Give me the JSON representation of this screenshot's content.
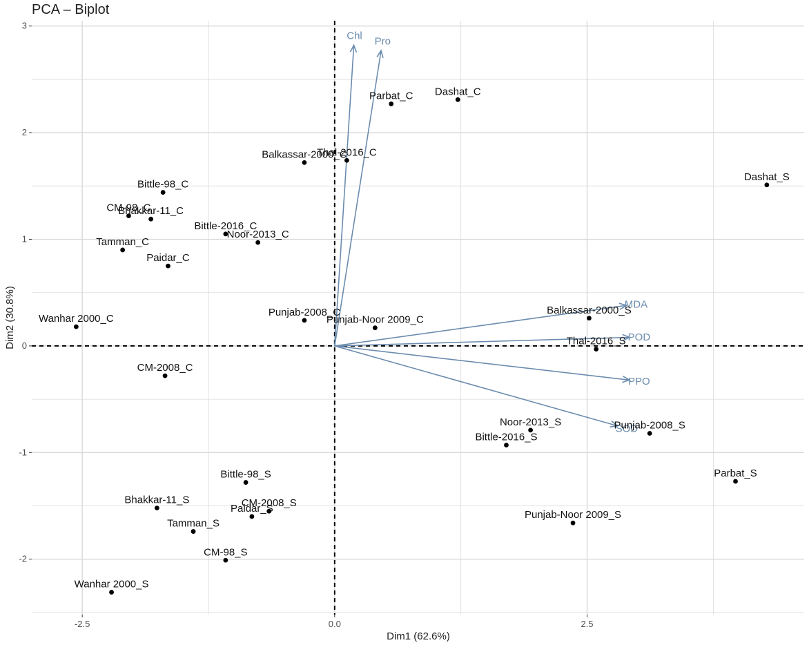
{
  "chart_data": {
    "type": "scatter",
    "title": "PCA – Biplot",
    "xlabel": "Dim1 (62.6%)",
    "ylabel": "Dim2 (30.8%)",
    "xlim": [
      -3.0,
      4.65
    ],
    "ylim": [
      -2.52,
      3.05
    ],
    "x_ticks": [
      -2.5,
      0.0,
      2.5
    ],
    "x_tick_labels": [
      "-2.5",
      "0.0",
      "2.5"
    ],
    "y_ticks": [
      -2,
      -1,
      0,
      1,
      2,
      3
    ],
    "y_tick_labels": [
      "-2",
      "-1",
      "0",
      "1",
      "2",
      "3"
    ],
    "grid": true,
    "arrow_color": "#6b8cae",
    "point_color": "#000000",
    "grid_color": "#d9d9d9",
    "points": [
      {
        "label": "Parbat_C",
        "x": 0.56,
        "y": 2.27
      },
      {
        "label": "Dashat_C",
        "x": 1.22,
        "y": 2.31
      },
      {
        "label": "Balkassar-2000_C",
        "x": -0.3,
        "y": 1.72
      },
      {
        "label": "Thal-2016_C",
        "x": 0.12,
        "y": 1.74
      },
      {
        "label": "Dashat_S",
        "x": 4.28,
        "y": 1.51
      },
      {
        "label": "Bittle-98_C",
        "x": -1.7,
        "y": 1.44
      },
      {
        "label": "CM-98_C",
        "x": -2.04,
        "y": 1.22
      },
      {
        "label": "Bhakkar-11_C",
        "x": -1.82,
        "y": 1.19
      },
      {
        "label": "Bittle-2016_C",
        "x": -1.08,
        "y": 1.05
      },
      {
        "label": "Noor-2013_C",
        "x": -0.76,
        "y": 0.97
      },
      {
        "label": "Tamman_C",
        "x": -2.1,
        "y": 0.9
      },
      {
        "label": "Paidar_C",
        "x": -1.65,
        "y": 0.75
      },
      {
        "label": "Wanhar 2000_C",
        "x": -2.56,
        "y": 0.18
      },
      {
        "label": "Punjab-2008_C",
        "x": -0.3,
        "y": 0.24
      },
      {
        "label": "Punjab-Noor 2009_C",
        "x": 0.4,
        "y": 0.17
      },
      {
        "label": "Balkassar-2000_S",
        "x": 2.52,
        "y": 0.26
      },
      {
        "label": "Thal-2016_S",
        "x": 2.59,
        "y": -0.03
      },
      {
        "label": "CM-2008_C",
        "x": -1.68,
        "y": -0.28
      },
      {
        "label": "Noor-2013_S",
        "x": 1.94,
        "y": -0.79
      },
      {
        "label": "Punjab-2008_S",
        "x": 3.12,
        "y": -0.82
      },
      {
        "label": "Bittle-2016_S",
        "x": 1.7,
        "y": -0.93
      },
      {
        "label": "Bittle-98_S",
        "x": -0.88,
        "y": -1.28
      },
      {
        "label": "Parbat_S",
        "x": 3.97,
        "y": -1.27
      },
      {
        "label": "Bhakkar-11_S",
        "x": -1.76,
        "y": -1.52
      },
      {
        "label": "CM-2008_S",
        "x": -0.65,
        "y": -1.55
      },
      {
        "label": "Paidar_S",
        "x": -0.82,
        "y": -1.6
      },
      {
        "label": "Tamman_S",
        "x": -1.4,
        "y": -1.74
      },
      {
        "label": "Punjab-Noor 2009_S",
        "x": 2.36,
        "y": -1.66
      },
      {
        "label": "CM-98_S",
        "x": -1.08,
        "y": -2.01
      },
      {
        "label": "Wanhar 2000_S",
        "x": -2.21,
        "y": -2.31
      }
    ],
    "variables": [
      {
        "label": "Chl",
        "x": 0.19,
        "y": 2.82
      },
      {
        "label": "Pro",
        "x": 0.46,
        "y": 2.77
      },
      {
        "label": "MDA",
        "x": 2.89,
        "y": 0.38
      },
      {
        "label": "POD",
        "x": 2.92,
        "y": 0.08
      },
      {
        "label": "PPO",
        "x": 2.92,
        "y": -0.32
      },
      {
        "label": "SOD",
        "x": 2.8,
        "y": -0.75
      }
    ]
  }
}
